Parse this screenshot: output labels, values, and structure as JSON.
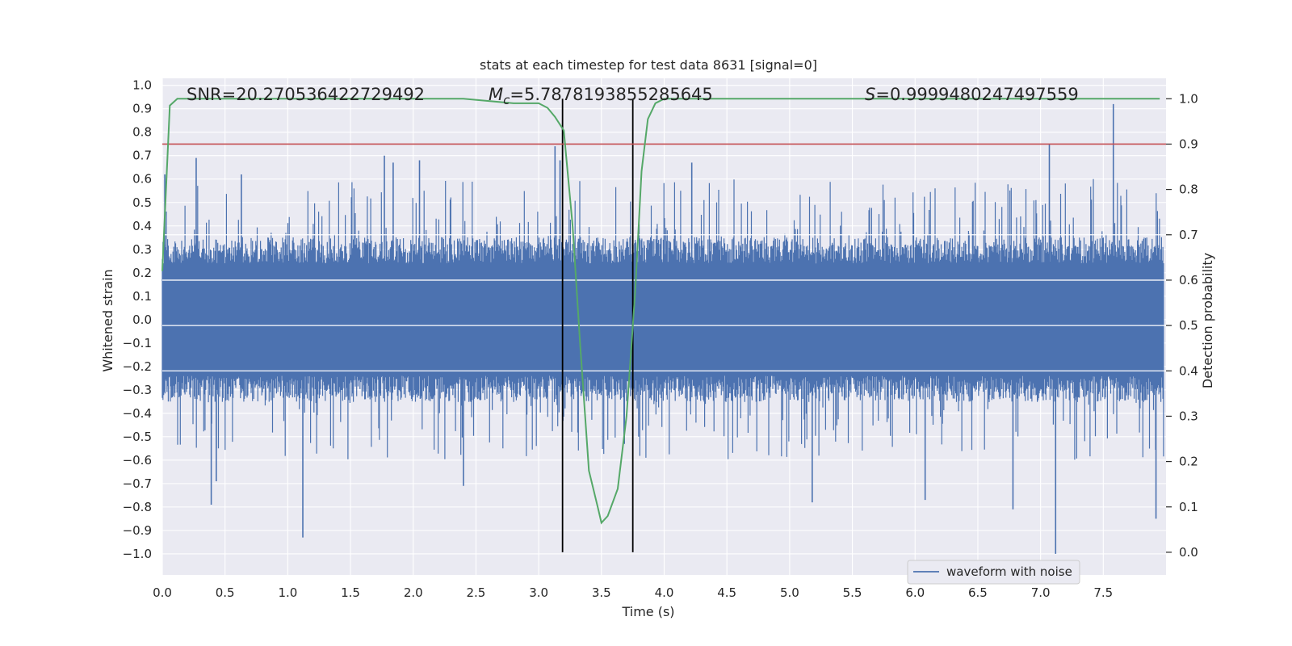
{
  "chart_data": {
    "type": "line",
    "title": "stats at each timestep for test data 8631 [signal=0]",
    "xlabel": "Time (s)",
    "ylabel": "Whitened strain",
    "y2label": "Detection probability",
    "xlim": [
      0.0,
      8.0
    ],
    "ylim": [
      -1.09,
      1.03
    ],
    "y2lim": [
      -0.05,
      1.045
    ],
    "xticks": [
      0.0,
      0.5,
      1.0,
      1.5,
      2.0,
      2.5,
      3.0,
      3.5,
      4.0,
      4.5,
      5.0,
      5.5,
      6.0,
      6.5,
      7.0,
      7.5
    ],
    "xtick_labels": [
      "0.0",
      "0.5",
      "1.0",
      "1.5",
      "2.0",
      "2.5",
      "3.0",
      "3.5",
      "4.0",
      "4.5",
      "5.0",
      "5.5",
      "6.0",
      "6.5",
      "7.0",
      "7.5"
    ],
    "yticks": [
      1.0,
      0.9,
      0.8,
      0.7,
      0.6,
      0.5,
      0.4,
      0.3,
      0.2,
      0.1,
      0.0,
      -0.1,
      -0.2,
      -0.3,
      -0.4,
      -0.5,
      -0.6,
      -0.7,
      -0.8,
      -0.9,
      -1.0
    ],
    "ytick_labels": [
      "1.0",
      "0.9",
      "0.8",
      "0.7",
      "0.6",
      "0.5",
      "0.4",
      "0.3",
      "0.2",
      "0.1",
      "0.0",
      "−0.1",
      "−0.2",
      "−0.3",
      "−0.4",
      "−0.5",
      "−0.6",
      "−0.7",
      "−0.8",
      "−0.9",
      "−1.0"
    ],
    "y2ticks": [
      1.0,
      0.9,
      0.8,
      0.7,
      0.6,
      0.5,
      0.4,
      0.3,
      0.2,
      0.1,
      0.0
    ],
    "y2tick_labels": [
      "1.0",
      "0.9",
      "0.8",
      "0.7",
      "0.6",
      "0.5",
      "0.4",
      "0.3",
      "0.2",
      "0.1",
      "0.0"
    ],
    "grid": true,
    "legend": {
      "entries": [
        "waveform with noise"
      ],
      "placement": "lower-right"
    },
    "annotations": {
      "snr": "SNR=20.270536422729492",
      "mc_symbol": "M",
      "mc_sub": "c",
      "mc_value": "=5.7878193855285645",
      "s_symbol": "S",
      "s_value": "=0.9999480247497559"
    },
    "waveform": {
      "name": "waveform with noise",
      "color": "#4c72b0",
      "t_start": 0.0,
      "t_end": 7.98,
      "band_envelope": 0.32,
      "core_extent": 0.18,
      "spikes": [
        {
          "t": 0.02,
          "v": 0.62
        },
        {
          "t": 0.27,
          "v": 0.69
        },
        {
          "t": 0.39,
          "v": -0.79
        },
        {
          "t": 0.43,
          "v": -0.69
        },
        {
          "t": 0.63,
          "v": 0.62
        },
        {
          "t": 1.12,
          "v": -0.93
        },
        {
          "t": 1.77,
          "v": 0.7
        },
        {
          "t": 1.84,
          "v": 0.67
        },
        {
          "t": 2.05,
          "v": 0.68
        },
        {
          "t": 2.4,
          "v": -0.71
        },
        {
          "t": 3.13,
          "v": 0.74
        },
        {
          "t": 3.17,
          "v": 0.68
        },
        {
          "t": 4.22,
          "v": 0.67
        },
        {
          "t": 5.18,
          "v": -0.78
        },
        {
          "t": 6.08,
          "v": -0.77
        },
        {
          "t": 6.78,
          "v": -0.81
        },
        {
          "t": 7.07,
          "v": 0.75
        },
        {
          "t": 7.12,
          "v": -1.0
        },
        {
          "t": 7.58,
          "v": 0.92
        },
        {
          "t": 7.92,
          "v": -0.85
        }
      ]
    },
    "detection_probability": {
      "name": "Detection probability",
      "color": "#55a868",
      "x": [
        0.0,
        0.06,
        0.12,
        0.3,
        1.0,
        2.0,
        2.4,
        2.8,
        3.0,
        3.07,
        3.13,
        3.2,
        3.27,
        3.33,
        3.4,
        3.47,
        3.5,
        3.55,
        3.63,
        3.7,
        3.77,
        3.82,
        3.87,
        3.93,
        4.0,
        5.0,
        6.0,
        7.0,
        7.95
      ],
      "values": [
        0.62,
        0.985,
        1.0,
        1.0,
        1.0,
        1.0,
        1.0,
        0.99,
        0.99,
        0.98,
        0.96,
        0.93,
        0.72,
        0.46,
        0.18,
        0.1,
        0.065,
        0.08,
        0.14,
        0.3,
        0.58,
        0.84,
        0.955,
        0.99,
        1.0,
        1.0,
        1.0,
        1.0,
        1.0
      ]
    },
    "threshold": {
      "value": 0.9,
      "axis": "right",
      "color": "#c44e52"
    },
    "vertical_markers": [
      {
        "t": 3.19,
        "color": "#000000"
      },
      {
        "t": 3.75,
        "color": "#000000"
      }
    ],
    "colors": {
      "plot_background": "#eaeaf2",
      "grid": "#ffffff",
      "text": "#262626"
    }
  }
}
